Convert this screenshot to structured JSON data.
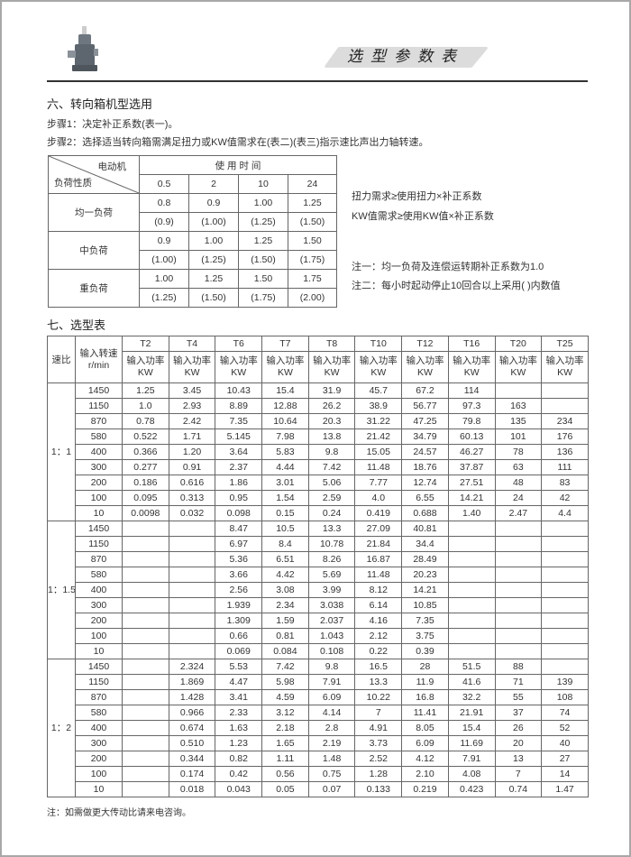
{
  "header": {
    "title": "选型参数表",
    "logo": "gearbox-product-photo"
  },
  "section6": {
    "heading": "六、转向箱机型选用",
    "step1": "步骤1：决定补正系数(表一)。",
    "step2": "步骤2：选择适当转向箱需满足扭力或KW值需求在(表二)(表三)指示速比声出力轴转速。"
  },
  "factor_table": {
    "corner_top": "电动机",
    "corner_bottom": "负荷性质",
    "time_header": "使 用 时 间",
    "hours": [
      "0.5",
      "2",
      "10",
      "24"
    ],
    "rows": [
      {
        "load": "均一负荷",
        "normal": [
          "0.8",
          "0.9",
          "1.00",
          "1.25"
        ],
        "frequent": [
          "(0.9)",
          "(1.00)",
          "(1.25)",
          "(1.50)"
        ]
      },
      {
        "load": "中负荷",
        "normal": [
          "0.9",
          "1.00",
          "1.25",
          "1.50"
        ],
        "frequent": [
          "(1.00)",
          "(1.25)",
          "(1.50)",
          "(1.75)"
        ]
      },
      {
        "load": "重负荷",
        "normal": [
          "1.00",
          "1.25",
          "1.50",
          "1.75"
        ],
        "frequent": [
          "(1.25)",
          "(1.50)",
          "(1.75)",
          "(2.00)"
        ]
      }
    ]
  },
  "formulas": {
    "torque": "扭力需求≥使用扭力×补正系数",
    "kw": "KW值需求≥使用KW值×补正系数",
    "note1": "注一：均一负荷及连偿运转期补正系数为1.0",
    "note2": "注二：每小时起动停止10回合以上采用( )内数值"
  },
  "section7": {
    "heading": "七、选型表"
  },
  "selection_table": {
    "ratio_header": "速比",
    "speed_header": "输入转速 r/min",
    "models": [
      "T2",
      "T4",
      "T6",
      "T7",
      "T8",
      "T10",
      "T12",
      "T16",
      "T20",
      "T25"
    ],
    "power_header": "输入功率KW",
    "sections": [
      {
        "ratio": "1：1",
        "rows": [
          {
            "speed": "1450",
            "values": [
              "1.25",
              "3.45",
              "10.43",
              "15.4",
              "31.9",
              "45.7",
              "67.2",
              "114",
              "",
              ""
            ]
          },
          {
            "speed": "1150",
            "values": [
              "1.0",
              "2.93",
              "8.89",
              "12.88",
              "26.2",
              "38.9",
              "56.77",
              "97.3",
              "163",
              ""
            ]
          },
          {
            "speed": "870",
            "values": [
              "0.78",
              "2.42",
              "7.35",
              "10.64",
              "20.3",
              "31.22",
              "47.25",
              "79.8",
              "135",
              "234"
            ]
          },
          {
            "speed": "580",
            "values": [
              "0.522",
              "1.71",
              "5.145",
              "7.98",
              "13.8",
              "21.42",
              "34.79",
              "60.13",
              "101",
              "176"
            ]
          },
          {
            "speed": "400",
            "values": [
              "0.366",
              "1.20",
              "3.64",
              "5.83",
              "9.8",
              "15.05",
              "24.57",
              "46.27",
              "78",
              "136"
            ]
          },
          {
            "speed": "300",
            "values": [
              "0.277",
              "0.91",
              "2.37",
              "4.44",
              "7.42",
              "11.48",
              "18.76",
              "37.87",
              "63",
              "111"
            ]
          },
          {
            "speed": "200",
            "values": [
              "0.186",
              "0.616",
              "1.86",
              "3.01",
              "5.06",
              "7.77",
              "12.74",
              "27.51",
              "48",
              "83"
            ]
          },
          {
            "speed": "100",
            "values": [
              "0.095",
              "0.313",
              "0.95",
              "1.54",
              "2.59",
              "4.0",
              "6.55",
              "14.21",
              "24",
              "42"
            ]
          },
          {
            "speed": "10",
            "values": [
              "0.0098",
              "0.032",
              "0.098",
              "0.15",
              "0.24",
              "0.419",
              "0.688",
              "1.40",
              "2.47",
              "4.4"
            ]
          }
        ]
      },
      {
        "ratio": "1：1.5",
        "rows": [
          {
            "speed": "1450",
            "values": [
              "",
              "",
              "8.47",
              "10.5",
              "13.3",
              "27.09",
              "40.81",
              "",
              "",
              ""
            ]
          },
          {
            "speed": "1150",
            "values": [
              "",
              "",
              "6.97",
              "8.4",
              "10.78",
              "21.84",
              "34.4",
              "",
              "",
              ""
            ]
          },
          {
            "speed": "870",
            "values": [
              "",
              "",
              "5.36",
              "6.51",
              "8.26",
              "16.87",
              "28.49",
              "",
              "",
              ""
            ]
          },
          {
            "speed": "580",
            "values": [
              "",
              "",
              "3.66",
              "4.42",
              "5.69",
              "11.48",
              "20.23",
              "",
              "",
              ""
            ]
          },
          {
            "speed": "400",
            "values": [
              "",
              "",
              "2.56",
              "3.08",
              "3.99",
              "8.12",
              "14.21",
              "",
              "",
              ""
            ]
          },
          {
            "speed": "300",
            "values": [
              "",
              "",
              "1.939",
              "2.34",
              "3.038",
              "6.14",
              "10.85",
              "",
              "",
              ""
            ]
          },
          {
            "speed": "200",
            "values": [
              "",
              "",
              "1.309",
              "1.59",
              "2.037",
              "4.16",
              "7.35",
              "",
              "",
              ""
            ]
          },
          {
            "speed": "100",
            "values": [
              "",
              "",
              "0.66",
              "0.81",
              "1.043",
              "2.12",
              "3.75",
              "",
              "",
              ""
            ]
          },
          {
            "speed": "10",
            "values": [
              "",
              "",
              "0.069",
              "0.084",
              "0.108",
              "0.22",
              "0.39",
              "",
              "",
              ""
            ]
          }
        ]
      },
      {
        "ratio": "1：2",
        "rows": [
          {
            "speed": "1450",
            "values": [
              "",
              "2.324",
              "5.53",
              "7.42",
              "9.8",
              "16.5",
              "28",
              "51.5",
              "88",
              ""
            ]
          },
          {
            "speed": "1150",
            "values": [
              "",
              "1.869",
              "4.47",
              "5.98",
              "7.91",
              "13.3",
              "11.9",
              "41.6",
              "71",
              "139"
            ]
          },
          {
            "speed": "870",
            "values": [
              "",
              "1.428",
              "3.41",
              "4.59",
              "6.09",
              "10.22",
              "16.8",
              "32.2",
              "55",
              "108"
            ]
          },
          {
            "speed": "580",
            "values": [
              "",
              "0.966",
              "2.33",
              "3.12",
              "4.14",
              "7",
              "11.41",
              "21.91",
              "37",
              "74"
            ]
          },
          {
            "speed": "400",
            "values": [
              "",
              "0.674",
              "1.63",
              "2.18",
              "2.8",
              "4.91",
              "8.05",
              "15.4",
              "26",
              "52"
            ]
          },
          {
            "speed": "300",
            "values": [
              "",
              "0.510",
              "1.23",
              "1.65",
              "2.19",
              "3.73",
              "6.09",
              "11.69",
              "20",
              "40"
            ]
          },
          {
            "speed": "200",
            "values": [
              "",
              "0.344",
              "0.82",
              "1.11",
              "1.48",
              "2.52",
              "4.12",
              "7.91",
              "13",
              "27"
            ]
          },
          {
            "speed": "100",
            "values": [
              "",
              "0.174",
              "0.42",
              "0.56",
              "0.75",
              "1.28",
              "2.10",
              "4.08",
              "7",
              "14"
            ]
          },
          {
            "speed": "10",
            "values": [
              "",
              "0.018",
              "0.043",
              "0.05",
              "0.07",
              "0.133",
              "0.219",
              "0.423",
              "0.74",
              "1.47"
            ]
          }
        ]
      }
    ],
    "footnote": "注：如需做更大传动比请来电咨询。"
  }
}
